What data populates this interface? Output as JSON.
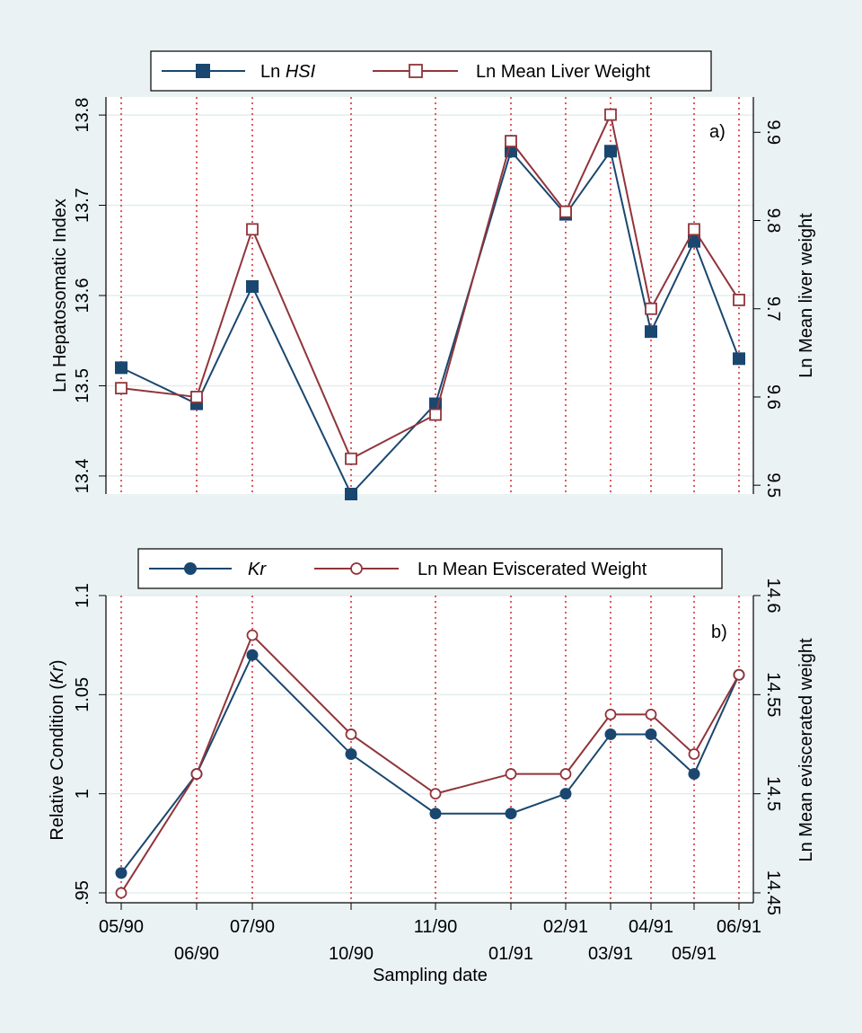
{
  "colors": {
    "background": "#eaf2f3",
    "plot_bg": "#ffffff",
    "series1": "#1a476f",
    "series2": "#90353b",
    "date_lines": "#d62728",
    "grid": "#e2edee"
  },
  "x_axis": {
    "title": "Sampling date",
    "ticks": [
      {
        "label": "05/90",
        "row": "upper"
      },
      {
        "label": "06/90",
        "row": "lower"
      },
      {
        "label": "07/90",
        "row": "upper"
      },
      {
        "label": "10/90",
        "row": "lower"
      },
      {
        "label": "11/90",
        "row": "upper"
      },
      {
        "label": "01/91",
        "row": "lower"
      },
      {
        "label": "02/91",
        "row": "upper"
      },
      {
        "label": "03/91",
        "row": "lower"
      },
      {
        "label": "04/91",
        "row": "upper"
      },
      {
        "label": "05/91",
        "row": "lower"
      },
      {
        "label": "06/91",
        "row": "upper"
      }
    ]
  },
  "chart_data": [
    {
      "type": "line",
      "panel_label": "a)",
      "x": [
        "05/90",
        "06/90",
        "07/90",
        "10/90",
        "11/90",
        "01/91",
        "02/91",
        "03/91",
        "04/91",
        "05/91",
        "06/91"
      ],
      "legend": {
        "placement": "top",
        "entries": [
          {
            "prefix": "Ln ",
            "italic": "HSI",
            "marker": "square-filled"
          },
          {
            "prefix": "Ln Mean Liver Weight",
            "italic": "",
            "marker": "square-hollow"
          }
        ]
      },
      "y_left": {
        "label": "Ln Hepatosomatic Index",
        "range": [
          13.38,
          13.82
        ],
        "ticks": [
          "13.4",
          "13.5",
          "13.6",
          "13.7",
          "13.8"
        ]
      },
      "y_right": {
        "label": "Ln Mean liver weight",
        "range": [
          9.49,
          9.94
        ],
        "ticks": [
          "9.5",
          "9.6",
          "9.7",
          "9.8",
          "9.9"
        ]
      },
      "grid": true,
      "series": [
        {
          "axis": "left",
          "marker": "square-filled",
          "values": [
            13.52,
            13.48,
            13.61,
            13.38,
            13.48,
            13.76,
            13.69,
            13.76,
            13.56,
            13.66,
            13.53
          ]
        },
        {
          "axis": "right",
          "marker": "square-hollow",
          "values": [
            9.61,
            9.6,
            9.79,
            9.53,
            9.58,
            9.89,
            9.81,
            9.92,
            9.7,
            9.79,
            9.71
          ]
        }
      ]
    },
    {
      "type": "line",
      "panel_label": "b)",
      "x": [
        "05/90",
        "06/90",
        "07/90",
        "10/90",
        "11/90",
        "01/91",
        "02/91",
        "03/91",
        "04/91",
        "05/91",
        "06/91"
      ],
      "legend": {
        "placement": "top",
        "entries": [
          {
            "prefix": "",
            "italic": "Kr",
            "marker": "circle-filled"
          },
          {
            "prefix": "Ln Mean Eviscerated Weight",
            "italic": "",
            "marker": "circle-hollow"
          }
        ]
      },
      "y_left": {
        "label_prefix": "Relative Condition (",
        "label_italic": "Kr",
        "label_suffix": ")",
        "range": [
          0.945,
          1.1
        ],
        "ticks": [
          "1.1",
          "1.05",
          "1",
          ".95"
        ]
      },
      "y_right": {
        "label": "Ln Mean eviscerated weight",
        "range": [
          14.445,
          14.6
        ],
        "ticks": [
          "14.45",
          "14.5",
          "14.55",
          "14.6"
        ]
      },
      "grid": true,
      "series": [
        {
          "axis": "left",
          "marker": "circle-filled",
          "values": [
            0.96,
            1.01,
            1.07,
            1.02,
            0.99,
            0.99,
            1.0,
            1.03,
            1.03,
            1.01,
            1.06
          ]
        },
        {
          "axis": "right",
          "marker": "circle-hollow",
          "values": [
            14.45,
            14.51,
            14.58,
            14.53,
            14.5,
            14.51,
            14.51,
            14.54,
            14.54,
            14.52,
            14.56
          ]
        }
      ]
    }
  ]
}
